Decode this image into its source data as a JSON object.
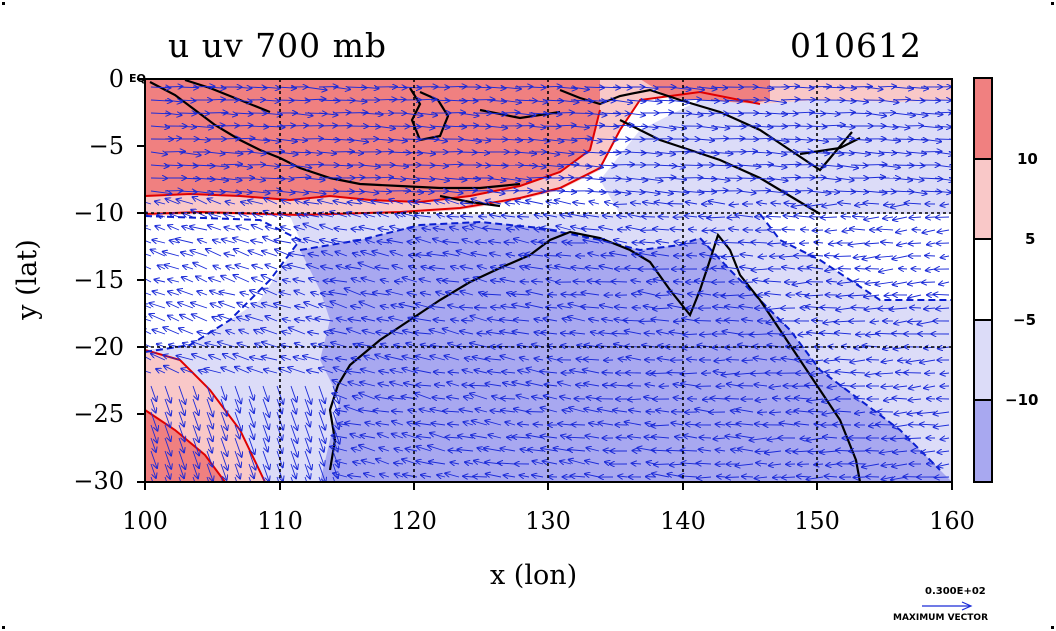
{
  "title": {
    "left": "u uv 700 mb",
    "right": "010612"
  },
  "axes": {
    "xlabel": "x (lon)",
    "ylabel": "y (lat)",
    "xlim": [
      100,
      160
    ],
    "ylim": [
      -30,
      0
    ],
    "x_ticks": [
      "100",
      "110",
      "120",
      "130",
      "140",
      "150",
      "160"
    ],
    "y_ticks": [
      "0",
      "−5",
      "−10",
      "−15",
      "−20",
      "−25",
      "−30"
    ],
    "y_top_suffix": "EQ",
    "gridlines": "dashed every 10° lon and 10° lat"
  },
  "colorbar": {
    "labels": [
      "10",
      "5",
      "−5",
      "−10"
    ],
    "bins": [
      {
        "range": "> 10",
        "color": "#f08080"
      },
      {
        "range": "5 to 10",
        "color": "#f9c8c8"
      },
      {
        "range": "-5 to 5",
        "color": "#ffffff"
      },
      {
        "range": "-10 to -5",
        "color": "#dcdcf8"
      },
      {
        "range": "< -10",
        "color": "#a8a8f0"
      }
    ]
  },
  "vector_key": {
    "value": "0.300E+02",
    "label": "MAXIMUM VECTOR"
  },
  "colors": {
    "strong_positive": "#f08080",
    "weak_positive": "#f9c8c8",
    "weak_negative": "#dcdcf8",
    "strong_negative": "#a8a8f0",
    "arrows": "#1a2ad8",
    "contour_positive": "#e00000",
    "contour_negative": "#0a1ed0",
    "coastline": "#000000"
  }
}
